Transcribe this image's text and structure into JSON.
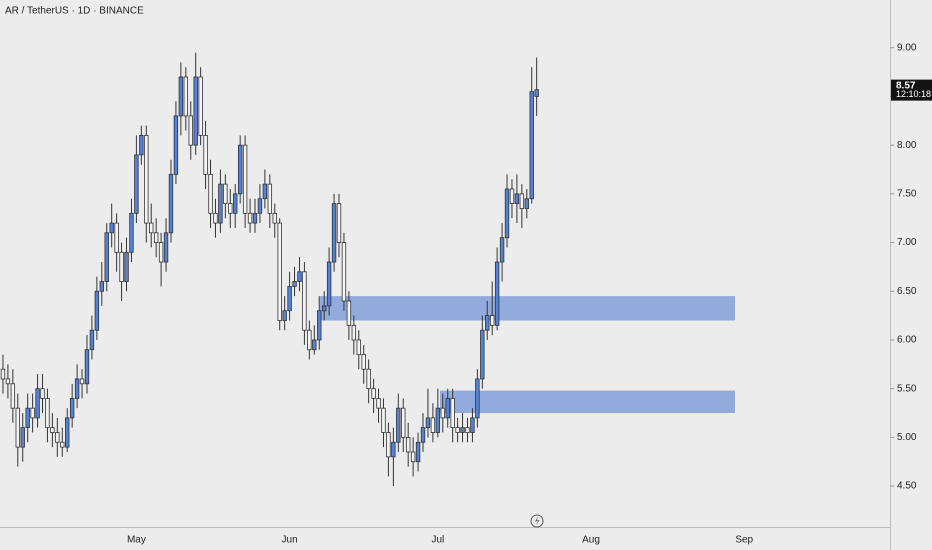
{
  "chart_data": {
    "type": "candlestick",
    "title": "AR / TetherUS · 1D · BINANCE",
    "countdown": "12:10:18",
    "up_color": "#5383d8",
    "down_color": "#f4f4f4",
    "zone_color": "#8ea6dc",
    "zones": [
      {
        "low": 6.2,
        "high": 6.45
      },
      {
        "low": 5.25,
        "high": 5.48
      }
    ],
    "ylim": [
      4.08,
      9.49
    ],
    "yticks": [
      {
        "value": 4.5,
        "label": "4.50"
      },
      {
        "value": 5,
        "label": "5.00"
      },
      {
        "value": 5.5,
        "label": "5.50"
      },
      {
        "value": 6,
        "label": "6.00"
      },
      {
        "value": 6.5,
        "label": "6.50"
      },
      {
        "value": 7,
        "label": "7.00"
      },
      {
        "value": 7.5,
        "label": "7.50"
      },
      {
        "value": 8,
        "label": "8.00"
      },
      {
        "value": 8.5,
        "label": "8.50"
      },
      {
        "value": 9,
        "label": "9.00"
      }
    ],
    "categories": [
      null,
      null,
      null,
      null,
      null,
      null,
      null,
      null,
      null,
      null,
      null,
      null,
      null,
      null,
      null,
      null,
      null,
      null,
      null,
      null,
      null,
      null,
      null,
      null,
      null,
      null,
      null,
      "May",
      null,
      null,
      null,
      null,
      null,
      null,
      null,
      null,
      null,
      null,
      null,
      null,
      null,
      null,
      null,
      null,
      null,
      null,
      null,
      null,
      null,
      null,
      null,
      null,
      null,
      null,
      null,
      null,
      null,
      null,
      "Jun",
      null,
      null,
      null,
      null,
      null,
      null,
      null,
      null,
      null,
      null,
      null,
      null,
      null,
      null,
      null,
      null,
      null,
      null,
      null,
      null,
      null,
      null,
      null,
      null,
      null,
      null,
      null,
      null,
      null,
      "Jul",
      null,
      null,
      null,
      null,
      null,
      null,
      null,
      null,
      null,
      null,
      null,
      null,
      null,
      null,
      null,
      null,
      null,
      null,
      null,
      null,
      null,
      null,
      null,
      null,
      null,
      null,
      null,
      null,
      null,
      null,
      "Aug",
      null,
      null,
      null,
      null,
      null,
      null,
      null,
      null,
      null,
      null,
      null,
      null,
      null,
      null,
      null,
      null,
      null,
      null,
      null,
      null,
      null,
      null,
      null,
      null,
      null,
      null,
      null,
      null,
      null,
      null,
      "Sep",
      null,
      null,
      null,
      null,
      null,
      null,
      null,
      null,
      null,
      null,
      null,
      null,
      null,
      null,
      null,
      null,
      null,
      null,
      null,
      null,
      null,
      null,
      null,
      null,
      null,
      null,
      null,
      null,
      null
    ],
    "open": [
      5.7,
      5.6,
      5.55,
      5.3,
      4.9,
      5.1,
      5.3,
      5.2,
      5.5,
      5.4,
      5.1,
      5.05,
      4.95,
      4.9,
      5.2,
      5.4,
      5.6,
      5.55,
      5.9,
      6.1,
      6.5,
      6.6,
      7.1,
      7.2,
      6.9,
      6.6,
      6.9,
      7.3,
      7.9,
      8.1,
      7.2,
      7.1,
      7.0,
      6.8,
      7.1,
      7.7,
      8.3,
      8.7,
      8.3,
      8.0,
      8.7,
      8.1,
      7.7,
      7.3,
      7.2,
      7.6,
      7.4,
      7.3,
      7.5,
      8.0,
      7.3,
      7.2,
      7.3,
      7.45,
      7.6,
      7.3,
      7.2,
      6.2,
      6.3,
      6.55,
      6.6,
      6.7,
      6.1,
      5.9,
      6.0,
      6.3,
      6.35,
      6.8,
      7.4,
      7.0,
      6.4,
      6.15,
      6.0,
      5.85,
      5.7,
      5.5,
      5.4,
      5.3,
      5.05,
      4.8,
      4.95,
      5.3,
      5.0,
      4.85,
      4.75,
      4.95,
      5.1,
      5.2,
      5.05,
      5.3,
      5.2,
      5.4,
      5.1,
      5.05,
      5.1,
      5.05,
      5.2,
      5.6,
      6.1,
      6.25,
      6.15,
      6.8,
      7.05,
      7.55,
      7.4,
      7.5,
      7.35,
      7.45,
      8.5,
      null,
      null,
      null,
      null,
      null,
      null,
      null,
      null,
      null,
      null,
      null,
      null,
      null,
      null,
      null,
      null,
      null,
      null,
      null,
      null,
      null,
      null,
      null,
      null,
      null,
      null,
      null,
      null,
      null,
      null,
      null,
      null,
      null,
      null,
      null,
      null,
      null,
      null,
      null,
      null,
      null,
      null,
      null,
      null,
      null,
      null,
      null,
      null,
      null,
      null,
      null,
      null,
      null,
      null,
      null,
      null,
      null,
      null,
      null,
      null,
      null,
      null,
      null,
      null,
      null,
      null,
      null,
      null,
      null,
      null,
      null
    ],
    "high": [
      5.85,
      5.75,
      5.7,
      5.45,
      5.25,
      5.45,
      5.45,
      5.65,
      5.65,
      5.5,
      5.25,
      5.2,
      5.1,
      5.3,
      5.55,
      5.75,
      5.7,
      6.05,
      6.25,
      6.65,
      6.8,
      7.2,
      7.4,
      7.3,
      7.0,
      7.05,
      7.45,
      8.1,
      8.2,
      8.2,
      7.4,
      7.25,
      7.1,
      7.25,
      7.85,
      8.45,
      8.85,
      8.8,
      8.45,
      8.95,
      8.8,
      8.25,
      7.85,
      7.45,
      7.75,
      7.7,
      7.55,
      7.6,
      8.1,
      8.1,
      7.45,
      7.45,
      7.6,
      7.75,
      7.7,
      7.4,
      7.25,
      6.45,
      6.7,
      6.75,
      6.85,
      6.8,
      6.2,
      6.15,
      6.45,
      6.5,
      6.95,
      7.5,
      7.5,
      7.1,
      6.5,
      6.25,
      6.1,
      5.95,
      5.8,
      5.6,
      5.5,
      5.4,
      5.15,
      5.1,
      5.45,
      5.4,
      5.15,
      5.0,
      5.05,
      5.25,
      5.5,
      5.35,
      5.5,
      5.45,
      5.5,
      5.5,
      5.2,
      5.25,
      5.2,
      5.3,
      5.7,
      6.25,
      6.4,
      6.6,
      6.95,
      7.2,
      7.7,
      7.65,
      7.7,
      7.6,
      7.55,
      8.8,
      8.9,
      null,
      null,
      null,
      null,
      null,
      null,
      null,
      null,
      null,
      null,
      null,
      null,
      null,
      null,
      null,
      null,
      null,
      null,
      null,
      null,
      null,
      null,
      null,
      null,
      null,
      null,
      null,
      null,
      null,
      null,
      null,
      null,
      null,
      null,
      null,
      null,
      null,
      null,
      null,
      null,
      null,
      null,
      null,
      null,
      null,
      null,
      null,
      null,
      null,
      null,
      null,
      null,
      null,
      null,
      null,
      null,
      null,
      null,
      null,
      null,
      null,
      null,
      null,
      null,
      null,
      null,
      null,
      null,
      null,
      null,
      null
    ],
    "low": [
      5.45,
      5.4,
      5.15,
      4.7,
      4.75,
      4.95,
      5.05,
      5.1,
      5.25,
      4.95,
      4.9,
      4.8,
      4.8,
      4.85,
      5.1,
      5.3,
      5.4,
      5.45,
      5.8,
      6.0,
      6.35,
      6.5,
      6.95,
      6.7,
      6.4,
      6.5,
      6.8,
      7.2,
      7.8,
      7.0,
      6.95,
      6.85,
      6.55,
      6.7,
      7.0,
      7.6,
      8.1,
      8.15,
      7.85,
      7.9,
      8.0,
      7.55,
      7.15,
      7.05,
      7.1,
      7.25,
      7.15,
      7.15,
      7.4,
      7.15,
      7.1,
      7.1,
      7.2,
      7.35,
      7.15,
      7.05,
      6.1,
      6.1,
      6.2,
      6.45,
      6.5,
      5.95,
      5.8,
      5.85,
      5.9,
      6.2,
      6.25,
      6.7,
      6.85,
      6.3,
      6.0,
      5.85,
      5.7,
      5.55,
      5.35,
      5.25,
      5.15,
      4.9,
      4.6,
      4.5,
      4.85,
      4.85,
      4.7,
      4.6,
      4.65,
      4.85,
      5.0,
      4.95,
      5.0,
      5.05,
      5.1,
      4.95,
      4.95,
      4.95,
      4.95,
      4.95,
      5.1,
      5.5,
      6.0,
      6.05,
      6.1,
      6.6,
      6.95,
      7.25,
      7.2,
      7.15,
      7.25,
      7.4,
      8.3,
      null,
      null,
      null,
      null,
      null,
      null,
      null,
      null,
      null,
      null,
      null,
      null,
      null,
      null,
      null,
      null,
      null,
      null,
      null,
      null,
      null,
      null,
      null,
      null,
      null,
      null,
      null,
      null,
      null,
      null,
      null,
      null,
      null,
      null,
      null,
      null,
      null,
      null,
      null,
      null,
      null,
      null,
      null,
      null,
      null,
      null,
      null,
      null,
      null,
      null,
      null,
      null,
      null,
      null,
      null,
      null,
      null,
      null,
      null,
      null,
      null,
      null,
      null,
      null,
      null,
      null,
      null,
      null,
      null,
      null,
      null
    ],
    "close": [
      5.6,
      5.55,
      5.3,
      4.9,
      5.1,
      5.3,
      5.2,
      5.5,
      5.4,
      5.1,
      5.05,
      4.95,
      4.9,
      5.2,
      5.4,
      5.6,
      5.55,
      5.9,
      6.1,
      6.5,
      6.6,
      7.1,
      7.2,
      6.9,
      6.6,
      6.9,
      7.3,
      7.9,
      8.1,
      7.2,
      7.1,
      7.0,
      6.8,
      7.1,
      7.7,
      8.3,
      8.7,
      8.3,
      8.0,
      8.7,
      8.1,
      7.7,
      7.3,
      7.2,
      7.6,
      7.4,
      7.3,
      7.5,
      8.0,
      7.3,
      7.2,
      7.3,
      7.45,
      7.6,
      7.3,
      7.2,
      6.2,
      6.3,
      6.55,
      6.6,
      6.7,
      6.1,
      5.9,
      6.0,
      6.3,
      6.35,
      6.8,
      7.4,
      7.0,
      6.4,
      6.15,
      6.0,
      5.85,
      5.7,
      5.5,
      5.4,
      5.3,
      5.05,
      4.8,
      4.95,
      5.3,
      5.0,
      4.85,
      4.75,
      4.95,
      5.1,
      5.2,
      5.05,
      5.3,
      5.2,
      5.4,
      5.1,
      5.05,
      5.1,
      5.05,
      5.2,
      5.6,
      6.1,
      6.25,
      6.15,
      6.8,
      7.05,
      7.55,
      7.4,
      7.5,
      7.35,
      7.45,
      8.55,
      8.57,
      null,
      null,
      null,
      null,
      null,
      null,
      null,
      null,
      null,
      null,
      null,
      null,
      null,
      null,
      null,
      null,
      null,
      null,
      null,
      null,
      null,
      null,
      null,
      null,
      null,
      null,
      null,
      null,
      null,
      null,
      null,
      null,
      null,
      null,
      null,
      null,
      null,
      null,
      null,
      null,
      null,
      null,
      null,
      null,
      null,
      null,
      null,
      null,
      null,
      null,
      null,
      null,
      null,
      null,
      null,
      null,
      null,
      null,
      null,
      null,
      null,
      null,
      null,
      null,
      null,
      null,
      null,
      null,
      null,
      null,
      null
    ]
  }
}
